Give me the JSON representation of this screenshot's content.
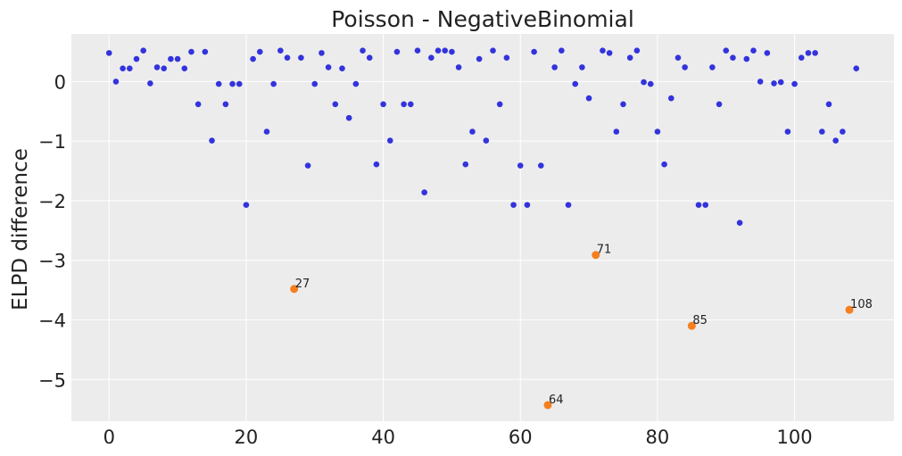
{
  "chart_data": {
    "type": "scatter",
    "title": "Poisson - NegativeBinomial",
    "xlabel": "",
    "ylabel": "ELPD difference",
    "xlim": [
      -5.5,
      114.5
    ],
    "ylim": [
      -5.7,
      0.8
    ],
    "xticks": [
      0,
      20,
      40,
      60,
      80,
      100
    ],
    "xtick_labels": [
      "0",
      "20",
      "40",
      "60",
      "80",
      "100"
    ],
    "yticks": [
      0,
      -1,
      -2,
      -3,
      -4,
      -5
    ],
    "ytick_labels": [
      "0",
      "−1",
      "−2",
      "−3",
      "−4",
      "−5"
    ],
    "grid": true,
    "background": "#ececec",
    "colors": {
      "points": "#3333dd",
      "highlight": "#f57f1f"
    },
    "y": [
      0.48,
      0.0,
      0.22,
      0.22,
      0.38,
      0.52,
      -0.03,
      0.24,
      0.22,
      0.38,
      0.38,
      0.22,
      0.5,
      -0.38,
      0.5,
      -0.99,
      -0.04,
      -0.38,
      -0.04,
      -0.04,
      -2.07,
      0.38,
      0.5,
      -0.84,
      -0.04,
      0.52,
      0.4,
      -3.48,
      0.4,
      -1.41,
      -0.04,
      0.48,
      0.24,
      -0.38,
      0.22,
      -0.61,
      -0.04,
      0.52,
      0.4,
      -1.39,
      -0.38,
      -0.99,
      0.5,
      -0.38,
      -0.38,
      0.52,
      -1.86,
      0.4,
      0.52,
      0.52,
      0.5,
      0.24,
      -1.39,
      -0.84,
      0.38,
      -0.99,
      0.52,
      -0.38,
      0.4,
      -2.07,
      -1.41,
      -2.07,
      0.5,
      -1.41,
      -5.43,
      0.24,
      0.52,
      -2.07,
      -0.04,
      0.24,
      -0.28,
      -2.91,
      0.52,
      0.48,
      -0.84,
      -0.38,
      0.4,
      0.52,
      -0.01,
      -0.04,
      -0.84,
      -1.39,
      -0.28,
      0.4,
      0.24,
      -4.1,
      -2.07,
      -2.07,
      0.24,
      -0.38,
      0.52,
      0.4,
      -2.37,
      0.38,
      0.52,
      0.0,
      0.48,
      -0.03,
      -0.01,
      -0.84,
      -0.04,
      0.4,
      0.48,
      0.48,
      -0.84,
      -0.38,
      -0.99,
      -0.84,
      -3.83,
      0.22
    ],
    "highlighted": [
      {
        "x": 27,
        "label": "27"
      },
      {
        "x": 64,
        "label": "64"
      },
      {
        "x": 71,
        "label": "71"
      },
      {
        "x": 85,
        "label": "85"
      },
      {
        "x": 108,
        "label": "108"
      }
    ]
  }
}
